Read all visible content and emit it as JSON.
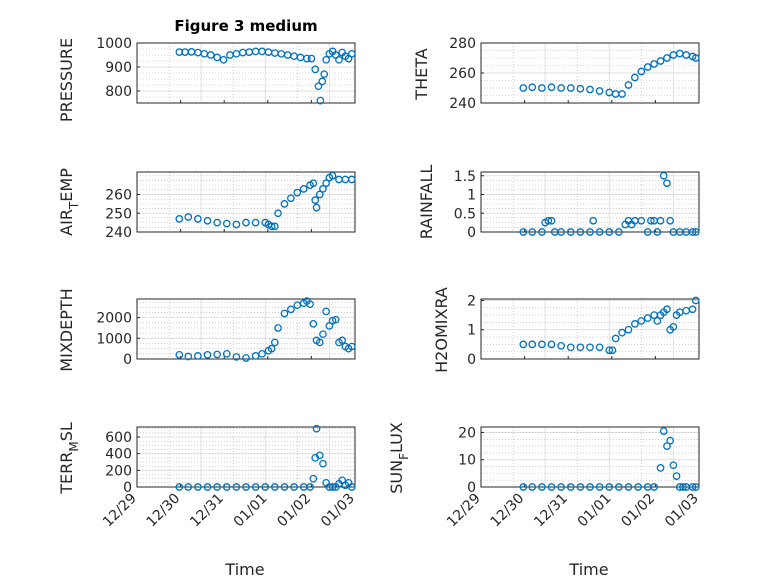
{
  "figure_title": "Figure 3 medium",
  "colors": {
    "marker": "#0072BD",
    "axis": "#262626",
    "grid": "#b0b0b0"
  },
  "chart_data": [
    {
      "type": "scatter",
      "title": "Figure 3 medium",
      "ylabel": "PRESSURE",
      "ylim": [
        750,
        1000
      ],
      "yticks": [
        800,
        900,
        1000
      ],
      "ytick_labels": [
        "800",
        "900",
        "1000"
      ],
      "x": [
        0.66,
        0.75,
        0.85,
        0.95,
        1.05,
        1.15,
        1.25,
        1.35,
        1.45,
        1.55,
        1.65,
        1.75,
        1.85,
        1.95,
        2.05,
        2.15,
        2.25,
        2.35,
        2.45,
        2.55,
        2.65,
        2.72,
        2.78,
        2.83,
        2.86,
        2.89,
        2.92,
        2.95,
        3.0,
        3.05,
        3.1,
        3.15,
        3.2,
        3.25,
        3.3,
        3.35
      ],
      "y": [
        962,
        962,
        963,
        960,
        955,
        950,
        940,
        930,
        950,
        955,
        960,
        962,
        965,
        965,
        962,
        958,
        955,
        950,
        945,
        940,
        935,
        935,
        890,
        820,
        760,
        840,
        870,
        930,
        955,
        965,
        950,
        930,
        960,
        945,
        935,
        955
      ]
    },
    {
      "type": "scatter",
      "ylabel": "THETA",
      "ylim": [
        240,
        280
      ],
      "yticks": [
        240,
        260,
        280
      ],
      "ytick_labels": [
        "240",
        "260",
        "280"
      ],
      "x": [
        0.66,
        0.8,
        0.95,
        1.1,
        1.25,
        1.4,
        1.55,
        1.7,
        1.85,
        2.0,
        2.1,
        2.2,
        2.3,
        2.4,
        2.5,
        2.6,
        2.7,
        2.8,
        2.9,
        3.0,
        3.1,
        3.2,
        3.3,
        3.35
      ],
      "y": [
        250,
        250.5,
        250,
        250.5,
        250,
        250,
        249.5,
        249,
        248,
        247,
        246,
        246,
        252,
        257,
        261,
        264,
        266,
        268,
        270,
        272,
        273,
        272,
        271,
        270
      ]
    },
    {
      "type": "scatter",
      "ylabel": "AIR_TEMP",
      "ylim": [
        240,
        272
      ],
      "yticks": [
        240,
        250,
        260
      ],
      "ytick_labels": [
        "240",
        "250",
        "260"
      ],
      "x": [
        0.66,
        0.8,
        0.95,
        1.1,
        1.25,
        1.4,
        1.55,
        1.7,
        1.85,
        2.0,
        2.05,
        2.1,
        2.15,
        2.2,
        2.3,
        2.4,
        2.5,
        2.6,
        2.7,
        2.75,
        2.78,
        2.8,
        2.85,
        2.9,
        2.95,
        3.0,
        3.05,
        3.15,
        3.25,
        3.35
      ],
      "y": [
        247,
        248,
        247,
        246,
        245,
        244.5,
        244,
        245,
        245,
        245,
        244,
        243,
        243,
        250,
        255,
        258,
        261,
        263,
        265,
        266,
        257,
        253,
        260,
        263,
        266,
        269,
        270,
        268,
        268,
        268
      ]
    },
    {
      "type": "scatter",
      "ylabel": "RAINFALL",
      "ylim": [
        0,
        1.6
      ],
      "yticks": [
        0,
        0.5,
        1,
        1.5
      ],
      "ytick_labels": [
        "0",
        "0.5",
        "1",
        "1.5"
      ],
      "x": [
        0.66,
        0.8,
        0.95,
        1.0,
        1.05,
        1.1,
        1.15,
        1.25,
        1.4,
        1.55,
        1.7,
        1.75,
        1.85,
        2.0,
        2.15,
        2.25,
        2.3,
        2.35,
        2.4,
        2.5,
        2.6,
        2.65,
        2.7,
        2.75,
        2.8,
        2.85,
        2.9,
        2.95,
        3.0,
        3.1,
        3.2,
        3.3,
        3.35
      ],
      "y": [
        0,
        0,
        0,
        0.25,
        0.3,
        0.3,
        0,
        0,
        0,
        0,
        0,
        0.3,
        0,
        0,
        0,
        0.2,
        0.3,
        0.2,
        0.3,
        0.3,
        0,
        0.3,
        0.3,
        0,
        0.3,
        1.5,
        1.3,
        0.3,
        0,
        0,
        0,
        0,
        0
      ]
    },
    {
      "type": "scatter",
      "ylabel": "MIXDEPTH",
      "ylim": [
        0,
        2900
      ],
      "yticks": [
        0,
        1000,
        2000
      ],
      "ytick_labels": [
        "0",
        "1000",
        "2000"
      ],
      "x": [
        0.66,
        0.8,
        0.95,
        1.1,
        1.25,
        1.4,
        1.55,
        1.7,
        1.85,
        1.95,
        2.05,
        2.1,
        2.15,
        2.2,
        2.3,
        2.4,
        2.5,
        2.6,
        2.65,
        2.7,
        2.75,
        2.8,
        2.85,
        2.9,
        2.95,
        3.0,
        3.05,
        3.1,
        3.15,
        3.2,
        3.25,
        3.3,
        3.35
      ],
      "y": [
        200,
        120,
        150,
        200,
        220,
        250,
        100,
        50,
        150,
        250,
        400,
        500,
        800,
        1500,
        2200,
        2400,
        2600,
        2700,
        2800,
        2650,
        1700,
        900,
        800,
        1200,
        2300,
        1600,
        1850,
        1900,
        800,
        900,
        600,
        500,
        600
      ]
    },
    {
      "type": "scatter",
      "ylabel": "H2OMIXRA",
      "ylim": [
        0,
        2.05
      ],
      "yticks": [
        0,
        1,
        2
      ],
      "ytick_labels": [
        "0",
        "1",
        "2"
      ],
      "x": [
        0.66,
        0.8,
        0.95,
        1.1,
        1.25,
        1.4,
        1.55,
        1.7,
        1.85,
        2.0,
        2.05,
        2.1,
        2.2,
        2.3,
        2.4,
        2.5,
        2.6,
        2.7,
        2.75,
        2.8,
        2.85,
        2.9,
        2.95,
        3.0,
        3.05,
        3.1,
        3.2,
        3.3,
        3.35
      ],
      "y": [
        0.5,
        0.5,
        0.5,
        0.5,
        0.45,
        0.4,
        0.4,
        0.4,
        0.4,
        0.3,
        0.3,
        0.7,
        0.9,
        1.0,
        1.2,
        1.3,
        1.4,
        1.5,
        1.3,
        1.5,
        1.6,
        1.7,
        1.0,
        1.1,
        1.5,
        1.6,
        1.65,
        1.7,
        2.0
      ]
    },
    {
      "type": "scatter",
      "ylabel": "TERR_MSL",
      "ylim": [
        0,
        720
      ],
      "yticks": [
        0,
        200,
        400,
        600
      ],
      "ytick_labels": [
        "0",
        "200",
        "400",
        "600"
      ],
      "x": [
        0.66,
        0.8,
        0.95,
        1.1,
        1.25,
        1.4,
        1.55,
        1.7,
        1.85,
        2.0,
        2.15,
        2.3,
        2.45,
        2.6,
        2.7,
        2.75,
        2.78,
        2.8,
        2.85,
        2.9,
        2.95,
        3.0,
        3.05,
        3.1,
        3.15,
        3.2,
        3.25,
        3.3,
        3.35
      ],
      "y": [
        0,
        0,
        0,
        0,
        0,
        0,
        0,
        0,
        0,
        0,
        0,
        0,
        0,
        0,
        0,
        100,
        350,
        700,
        380,
        280,
        50,
        0,
        0,
        0,
        40,
        80,
        20,
        50,
        0
      ]
    },
    {
      "type": "scatter",
      "ylabel": "SUN_FLUX",
      "ylim": [
        0,
        22
      ],
      "yticks": [
        0,
        10,
        20
      ],
      "ytick_labels": [
        "0",
        "10",
        "20"
      ],
      "x": [
        0.66,
        0.8,
        0.95,
        1.1,
        1.25,
        1.4,
        1.55,
        1.7,
        1.85,
        2.0,
        2.15,
        2.3,
        2.45,
        2.6,
        2.7,
        2.8,
        2.85,
        2.9,
        2.95,
        3.0,
        3.05,
        3.1,
        3.15,
        3.2,
        3.3,
        3.35
      ],
      "y": [
        0,
        0,
        0,
        0,
        0,
        0,
        0,
        0,
        0,
        0,
        0,
        0,
        0,
        0,
        0,
        7,
        20.5,
        15,
        17,
        8,
        4,
        0,
        0,
        0,
        0,
        0
      ]
    }
  ],
  "x_axis": {
    "xlim": [
      0,
      3.4
    ],
    "ticks": [
      0,
      1,
      2,
      3
    ],
    "minor_ticks": [
      0.5,
      1.5,
      2.5,
      3.5
    ],
    "tick_labels": [
      "12/29",
      "12/30",
      "12/31",
      "01/01",
      "01/02",
      "01/03"
    ],
    "label_positions": [
      0,
      0.68,
      1.36,
      2.04,
      2.72,
      3.4
    ],
    "xlabel": "Time"
  },
  "y_labels": {
    "pressure": "PRESSURE",
    "theta": "THETA",
    "air_main": "AIR",
    "air_sub": "T",
    "air_rest": "EMP",
    "rainfall": "RAINFALL",
    "mixdepth": "MIXDEPTH",
    "h2o": "H2OMIXRA",
    "terr_main": "TERR",
    "terr_sub": "M",
    "terr_rest": "SL",
    "sun_main": "SUN",
    "sun_sub": "F",
    "sun_rest": "LUX"
  }
}
